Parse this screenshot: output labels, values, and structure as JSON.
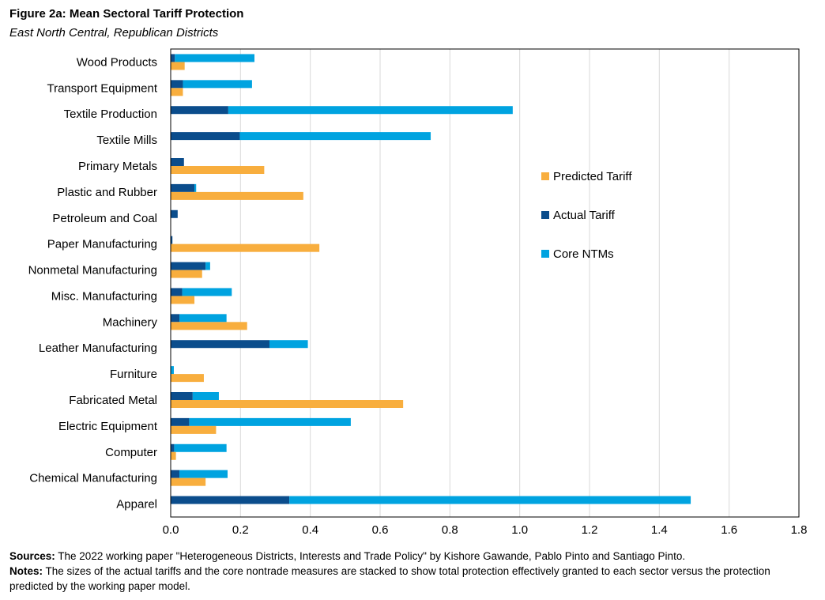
{
  "figure": {
    "title": "Figure 2a: Mean Sectoral Tariff Protection",
    "subtitle": "East North Central, Republican Districts"
  },
  "chart_data": {
    "type": "bar",
    "orientation": "horizontal",
    "categories": [
      "Wood Products",
      "Transport Equipment",
      "Textile Production",
      "Textile Mills",
      "Primary Metals",
      "Plastic and Rubber",
      "Petroleum and Coal",
      "Paper Manufacturing",
      "Nonmetal Manufacturing",
      "Misc. Manufacturing",
      "Machinery",
      "Leather Manufacturing",
      "Furniture",
      "Fabricated Metal",
      "Electric Equipment",
      "Computer",
      "Chemical Manufacturing",
      "Apparel"
    ],
    "series": [
      {
        "name": "Actual Tariff",
        "color": "#0b4d8c",
        "stack": "protection",
        "values": [
          0.012,
          0.035,
          0.165,
          0.198,
          0.038,
          0.068,
          0.02,
          0.005,
          0.1,
          0.033,
          0.025,
          0.283,
          0.0,
          0.063,
          0.053,
          0.01,
          0.025,
          0.34
        ]
      },
      {
        "name": "Core NTMs",
        "color": "#00a3e0",
        "stack": "protection",
        "values": [
          0.228,
          0.198,
          0.815,
          0.547,
          0.0,
          0.005,
          0.0,
          0.0,
          0.013,
          0.142,
          0.135,
          0.11,
          0.009,
          0.075,
          0.463,
          0.15,
          0.138,
          1.15
        ]
      },
      {
        "name": "Predicted Tariff",
        "color": "#f8ae3e",
        "stack": "predicted",
        "values": [
          0.04,
          0.035,
          0.0,
          0.0,
          0.268,
          0.38,
          0.0,
          0.426,
          0.09,
          0.068,
          0.219,
          0.0,
          0.095,
          0.666,
          0.13,
          0.015,
          0.1,
          0.0
        ]
      }
    ],
    "xlim": [
      0,
      1.8
    ],
    "xticks": [
      "0.0",
      "0.2",
      "0.4",
      "0.6",
      "0.8",
      "1.0",
      "1.2",
      "1.4",
      "1.6",
      "1.8"
    ],
    "grid": true,
    "legend": {
      "placement": "right-middle",
      "items": [
        {
          "label": "Predicted Tariff",
          "color": "#f8ae3e"
        },
        {
          "label": "Actual Tariff",
          "color": "#0b4d8c"
        },
        {
          "label": "Core NTMs",
          "color": "#00a3e0"
        }
      ]
    }
  },
  "footer": {
    "sources_label": "Sources:",
    "sources_text": " The 2022  working paper \"Heterogeneous Districts, Interests and Trade Policy\" by Kishore Gawande, Pablo Pinto and Santiago Pinto.",
    "notes_label": "Notes:",
    "notes_text": " The sizes of the actual tariffs and the core nontrade measures are stacked to show total protection effectively granted to each sector versus the protection predicted by the working paper model."
  }
}
